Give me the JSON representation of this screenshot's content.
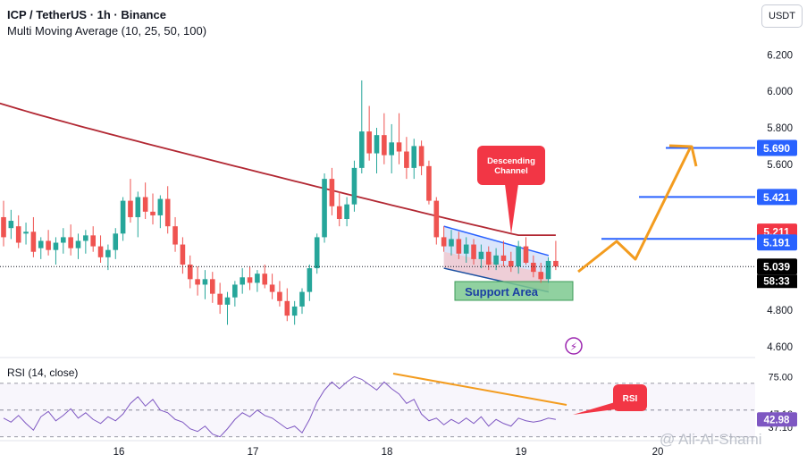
{
  "header": {
    "line1": "ICP / TetherUS · 1h · Binance",
    "line2": "Multi Moving Average (10, 25, 50, 100)"
  },
  "currency_button": "USDT",
  "rsi_title": "RSI (14, close)",
  "watermark": "@ Ali-Al-Shami",
  "colors": {
    "up": "#26a69a",
    "down": "#ef5350",
    "ma": "#b22833",
    "blue": "#2962ff",
    "orange": "#f39c1f",
    "rsi": "#7e57c2",
    "label_red": "#f23645"
  },
  "chart_data": [
    {
      "type": "candlestick",
      "title": "ICP / TetherUS · 1h · Binance",
      "ylim": [
        4.55,
        6.3
      ],
      "y_ticks": [
        "6.200",
        "6.000",
        "5.800",
        "5.600",
        "4.800",
        "4.600"
      ],
      "x_ticks": [
        "16",
        "17",
        "18",
        "19",
        "20"
      ],
      "price_labels": [
        {
          "value": "5.690",
          "color": "#2962ff"
        },
        {
          "value": "5.421",
          "color": "#2962ff"
        },
        {
          "value": "5.211",
          "color": "#f23645"
        },
        {
          "value": "5.191",
          "color": "#2962ff"
        },
        {
          "value": "5.039",
          "color": "#000000"
        }
      ],
      "countdown": "58:33",
      "horizontal_levels": [
        5.69,
        5.421,
        5.191
      ],
      "ma_value": 5.211,
      "last_price": 5.039,
      "annotations": {
        "channel_label": "Descending Channel",
        "support_label": "Support Area"
      },
      "candles_ohlc": [
        [
          5.31,
          5.4,
          5.15,
          5.2
        ],
        [
          5.25,
          5.35,
          5.19,
          5.29
        ],
        [
          5.26,
          5.32,
          5.14,
          5.17
        ],
        [
          5.22,
          5.28,
          5.16,
          5.23
        ],
        [
          5.23,
          5.31,
          5.09,
          5.12
        ],
        [
          5.14,
          5.2,
          5.08,
          5.18
        ],
        [
          5.18,
          5.24,
          5.1,
          5.13
        ],
        [
          5.13,
          5.2,
          5.05,
          5.17
        ],
        [
          5.17,
          5.25,
          5.11,
          5.2
        ],
        [
          5.2,
          5.27,
          5.1,
          5.14
        ],
        [
          5.14,
          5.22,
          5.08,
          5.18
        ],
        [
          5.18,
          5.24,
          5.11,
          5.21
        ],
        [
          5.21,
          5.26,
          5.12,
          5.15
        ],
        [
          5.15,
          5.21,
          5.06,
          5.09
        ],
        [
          5.09,
          5.16,
          5.02,
          5.13
        ],
        [
          5.13,
          5.25,
          5.08,
          5.22
        ],
        [
          5.22,
          5.42,
          5.18,
          5.4
        ],
        [
          5.4,
          5.52,
          5.28,
          5.31
        ],
        [
          5.31,
          5.45,
          5.2,
          5.42
        ],
        [
          5.42,
          5.5,
          5.3,
          5.34
        ],
        [
          5.34,
          5.44,
          5.27,
          5.32
        ],
        [
          5.32,
          5.43,
          5.25,
          5.41
        ],
        [
          5.41,
          5.48,
          5.22,
          5.26
        ],
        [
          5.26,
          5.31,
          5.12,
          5.16
        ],
        [
          5.16,
          5.2,
          5.0,
          5.05
        ],
        [
          5.05,
          5.1,
          4.92,
          4.97
        ],
        [
          4.97,
          5.04,
          4.88,
          4.94
        ],
        [
          4.94,
          5.02,
          4.86,
          4.97
        ],
        [
          4.97,
          5.01,
          4.84,
          4.89
        ],
        [
          4.89,
          4.95,
          4.78,
          4.83
        ],
        [
          4.83,
          4.9,
          4.72,
          4.87
        ],
        [
          4.87,
          4.96,
          4.82,
          4.94
        ],
        [
          4.94,
          5.03,
          4.89,
          4.98
        ],
        [
          4.98,
          5.04,
          4.91,
          4.95
        ],
        [
          4.95,
          5.02,
          4.9,
          5.0
        ],
        [
          5.0,
          5.05,
          4.92,
          4.94
        ],
        [
          4.94,
          5.0,
          4.86,
          4.9
        ],
        [
          4.9,
          4.96,
          4.82,
          4.85
        ],
        [
          4.85,
          4.92,
          4.74,
          4.77
        ],
        [
          4.77,
          4.85,
          4.72,
          4.82
        ],
        [
          4.82,
          4.92,
          4.78,
          4.9
        ],
        [
          4.9,
          5.05,
          4.85,
          5.03
        ],
        [
          5.03,
          5.22,
          5.0,
          5.2
        ],
        [
          5.2,
          5.55,
          5.17,
          5.52
        ],
        [
          5.52,
          5.58,
          5.32,
          5.37
        ],
        [
          5.37,
          5.45,
          5.26,
          5.3
        ],
        [
          5.3,
          5.42,
          5.26,
          5.38
        ],
        [
          5.38,
          5.62,
          5.34,
          5.58
        ],
        [
          5.58,
          6.06,
          5.55,
          5.78
        ],
        [
          5.78,
          5.92,
          5.62,
          5.66
        ],
        [
          5.66,
          5.8,
          5.55,
          5.76
        ],
        [
          5.76,
          5.88,
          5.6,
          5.65
        ],
        [
          5.65,
          5.82,
          5.55,
          5.72
        ],
        [
          5.72,
          5.88,
          5.6,
          5.67
        ],
        [
          5.67,
          5.75,
          5.52,
          5.58
        ],
        [
          5.58,
          5.74,
          5.52,
          5.7
        ],
        [
          5.7,
          5.73,
          5.54,
          5.59
        ],
        [
          5.59,
          5.62,
          5.38,
          5.4
        ],
        [
          5.4,
          5.42,
          5.16,
          5.2
        ],
        [
          5.2,
          5.26,
          5.12,
          5.15
        ],
        [
          5.15,
          5.24,
          5.1,
          5.19
        ],
        [
          5.19,
          5.23,
          5.08,
          5.11
        ],
        [
          5.11,
          5.2,
          5.06,
          5.16
        ],
        [
          5.16,
          5.19,
          5.05,
          5.08
        ],
        [
          5.08,
          5.16,
          5.03,
          5.12
        ],
        [
          5.12,
          5.15,
          5.02,
          5.05
        ],
        [
          5.05,
          5.14,
          5.02,
          5.1
        ],
        [
          5.1,
          5.18,
          5.04,
          5.07
        ],
        [
          5.07,
          5.12,
          5.01,
          5.04
        ],
        [
          5.04,
          5.18,
          5.0,
          5.15
        ],
        [
          5.15,
          5.2,
          5.05,
          5.06
        ],
        [
          5.06,
          5.1,
          4.98,
          5.01
        ],
        [
          5.01,
          5.06,
          4.95,
          4.97
        ],
        [
          4.97,
          5.09,
          4.95,
          5.07
        ],
        [
          5.07,
          5.18,
          5.02,
          5.04
        ]
      ]
    },
    {
      "type": "line",
      "title": "RSI (14, close)",
      "y_ticks": [
        "75.00",
        "47.16",
        "37.10"
      ],
      "current_value": "42.98",
      "levels": [
        70,
        50,
        30
      ],
      "annotation": "RSI",
      "values": [
        44,
        41,
        46,
        40,
        35,
        45,
        49,
        42,
        46,
        51,
        44,
        48,
        43,
        40,
        45,
        42,
        47,
        55,
        60,
        53,
        58,
        50,
        48,
        43,
        41,
        36,
        34,
        38,
        32,
        30,
        36,
        43,
        48,
        45,
        50,
        46,
        44,
        40,
        36,
        38,
        33,
        43,
        56,
        65,
        71,
        66,
        71,
        75,
        73,
        69,
        65,
        71,
        66,
        62,
        55,
        58,
        47,
        42,
        44,
        39,
        43,
        40,
        44,
        40,
        45,
        38,
        43,
        40,
        38,
        44,
        42,
        41,
        42,
        44,
        43
      ]
    }
  ]
}
